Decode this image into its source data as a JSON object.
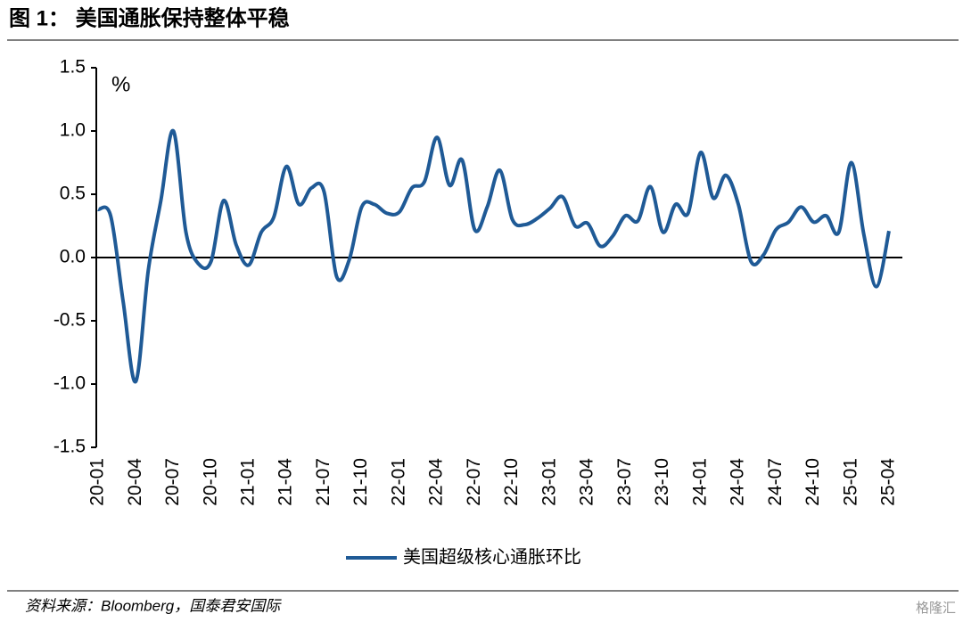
{
  "chart_data": {
    "type": "line",
    "title": "图 1：  美国通胀保持整体平稳",
    "y_label": "%",
    "source": "资料来源：Bloomberg，国泰君安国际",
    "watermark": "格隆汇",
    "categories": [
      "20-01",
      null,
      null,
      "20-04",
      null,
      null,
      "20-07",
      null,
      null,
      "20-10",
      null,
      null,
      "21-01",
      null,
      null,
      "21-04",
      null,
      null,
      "21-07",
      null,
      null,
      "21-10",
      null,
      null,
      "22-01",
      null,
      null,
      "22-04",
      null,
      null,
      "22-07",
      null,
      null,
      "22-10",
      null,
      null,
      "23-01",
      null,
      null,
      "23-04",
      null,
      null,
      "23-07",
      null,
      null,
      "23-10",
      null,
      null,
      "24-01",
      null,
      null,
      "24-04",
      null,
      null,
      "24-07",
      null,
      null,
      "24-10",
      null,
      null,
      "25-01",
      null,
      null,
      "25-04"
    ],
    "series": [
      {
        "name": "美国超级核心通胀环比",
        "color": "#1f5a96",
        "values": [
          0.38,
          0.33,
          -0.35,
          -0.98,
          -0.1,
          0.45,
          1.0,
          0.2,
          -0.05,
          -0.03,
          0.45,
          0.1,
          -0.06,
          0.2,
          0.32,
          0.72,
          0.42,
          0.55,
          0.52,
          -0.15,
          -0.02,
          0.4,
          0.42,
          0.35,
          0.36,
          0.55,
          0.6,
          0.95,
          0.57,
          0.77,
          0.22,
          0.4,
          0.69,
          0.3,
          0.26,
          0.31,
          0.39,
          0.48,
          0.25,
          0.27,
          0.09,
          0.17,
          0.33,
          0.29,
          0.56,
          0.2,
          0.42,
          0.35,
          0.83,
          0.47,
          0.65,
          0.42,
          -0.03,
          0.02,
          0.22,
          0.28,
          0.4,
          0.28,
          0.33,
          0.2,
          0.75,
          0.18,
          -0.23,
          0.21
        ]
      }
    ],
    "ylim": [
      -1.5,
      1.5
    ],
    "yticks": [
      {
        "value": -1.5,
        "label": "-1.5"
      },
      -0.5,
      {
        "value": -1.0,
        "label": "-1.0"
      },
      {
        "value": 0,
        "label": "0.0"
      },
      0.5,
      {
        "value": 1.0,
        "label": "1.0"
      },
      1.5
    ],
    "grid": false
  }
}
